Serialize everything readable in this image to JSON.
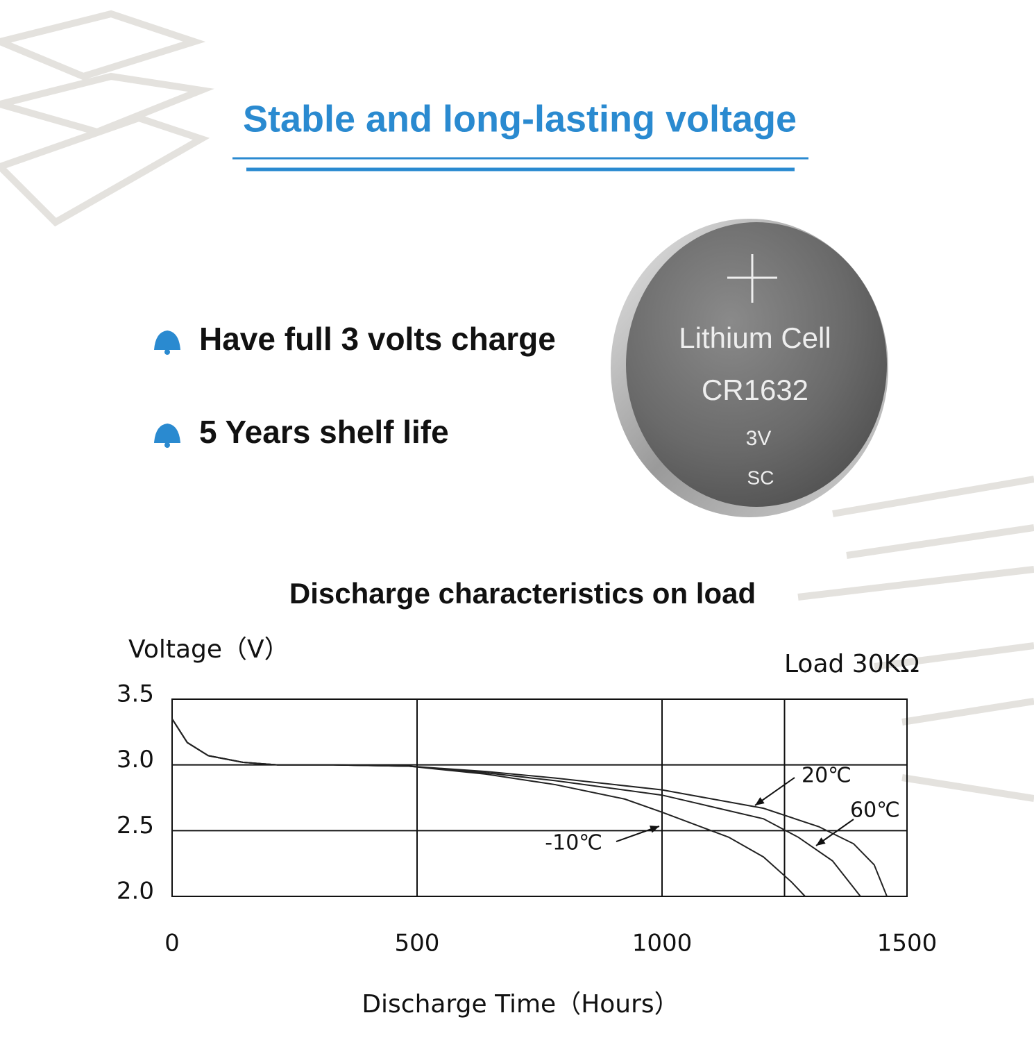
{
  "header": {
    "title": "Stable and long-lasting voltage"
  },
  "features": [
    "Have full 3 volts charge",
    "5 Years shelf life"
  ],
  "battery": {
    "name": "Lithium Cell",
    "model": "CR1632",
    "voltage": "3V",
    "maker": "SC"
  },
  "chart_data": {
    "type": "line",
    "title": "Discharge characteristics on load",
    "y_label": "Voltage（V）",
    "x_label": "Discharge Time（Hours）",
    "annotations": [
      "Load 30KΩ",
      "20℃",
      "60℃",
      "-10℃"
    ],
    "xlim": [
      0,
      1500
    ],
    "ylim": [
      2,
      3.5
    ],
    "xticks": [
      0,
      500,
      1000,
      {
        "value": 1250,
        "label": null
      },
      1500
    ],
    "yticks": [
      {
        "value": 2,
        "label": "2.0"
      },
      2.5,
      {
        "value": 3,
        "label": "3.0"
      },
      3.5
    ],
    "grid": true,
    "series": [
      {
        "name": "20℃",
        "color": "#222222",
        "x": [
          0,
          31,
          74,
          144,
          215,
          329,
          484,
          640,
          782,
          1000,
          1207,
          1320,
          1391,
          1433,
          1459
        ],
        "values": [
          3.35,
          3.17,
          3.07,
          3.02,
          3.0,
          3.0,
          2.99,
          2.95,
          2.9,
          2.81,
          2.67,
          2.53,
          2.4,
          2.24,
          2.0
        ]
      },
      {
        "name": "60℃",
        "color": "#222222",
        "x": [
          0,
          31,
          74,
          144,
          215,
          329,
          484,
          640,
          782,
          1000,
          1207,
          1278,
          1348,
          1405
        ],
        "values": [
          3.35,
          3.17,
          3.07,
          3.02,
          3.0,
          3.0,
          2.99,
          2.94,
          2.88,
          2.77,
          2.59,
          2.45,
          2.27,
          2.0
        ]
      },
      {
        "name": "-10℃",
        "color": "#222222",
        "x": [
          0,
          31,
          74,
          144,
          215,
          329,
          484,
          640,
          782,
          924,
          1000,
          1136,
          1207,
          1264,
          1292
        ],
        "values": [
          3.35,
          3.17,
          3.07,
          3.02,
          3.0,
          3.0,
          2.99,
          2.93,
          2.85,
          2.74,
          2.64,
          2.45,
          2.3,
          2.11,
          2.0
        ]
      }
    ]
  }
}
